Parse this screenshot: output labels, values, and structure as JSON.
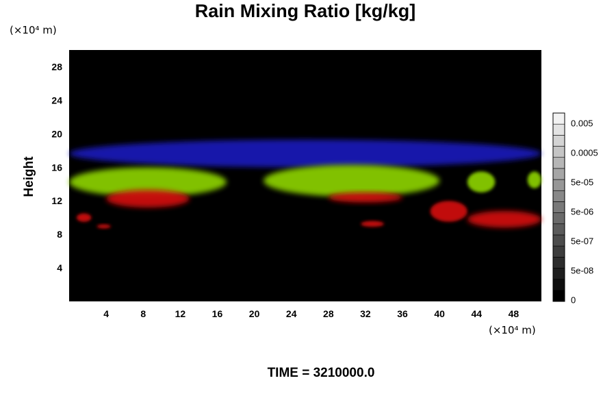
{
  "chart_data": {
    "type": "heatmap",
    "title": "Rain Mixing Ratio [kg/kg]",
    "ylabel": "Height",
    "x_unit": "(×10⁴ m)",
    "y_unit": "(×10⁴ m)",
    "xlim": [
      0,
      51
    ],
    "ylim": [
      0,
      30
    ],
    "x_ticks": [
      4,
      8,
      12,
      16,
      20,
      24,
      28,
      32,
      36,
      40,
      44,
      48
    ],
    "y_ticks": [
      4,
      8,
      12,
      16,
      20,
      24,
      28
    ],
    "grid": false,
    "background_color": "#000000",
    "features": [
      {
        "color": "#1c1cc8",
        "x": [
          0,
          51
        ],
        "y": [
          16,
          19.3
        ]
      },
      {
        "color": "#88cc00",
        "x": [
          0,
          17
        ],
        "y": [
          12.5,
          16
        ]
      },
      {
        "color": "#88cc00",
        "x": [
          21,
          40
        ],
        "y": [
          12.5,
          16.3
        ]
      },
      {
        "color": "#88cc00",
        "x": [
          43,
          46
        ],
        "y": [
          13,
          15.5
        ]
      },
      {
        "color": "#88cc00",
        "x": [
          49.5,
          51
        ],
        "y": [
          13.5,
          15.5
        ]
      },
      {
        "color": "#cc1010",
        "x": [
          4,
          13
        ],
        "y": [
          11.2,
          13.3
        ]
      },
      {
        "color": "#cc1010",
        "x": [
          28,
          36
        ],
        "y": [
          11.8,
          13
        ]
      },
      {
        "color": "#cc1010",
        "x": [
          39,
          43
        ],
        "y": [
          9.5,
          12
        ]
      },
      {
        "color": "#cc1010",
        "x": [
          43,
          51
        ],
        "y": [
          8.8,
          10.8
        ]
      },
      {
        "color": "#cc1010",
        "x": [
          0.8,
          2.4
        ],
        "y": [
          9.5,
          10.5
        ]
      },
      {
        "color": "#cc1010",
        "x": [
          31.5,
          34
        ],
        "y": [
          8.9,
          9.6
        ]
      },
      {
        "color": "#cc1010",
        "x": [
          3,
          4.5
        ],
        "y": [
          8.7,
          9.2
        ]
      }
    ],
    "colorbar": {
      "tick_labels": [
        "0.005",
        "0.0005",
        "5e-05",
        "5e-06",
        "5e-07",
        "5e-08",
        "0"
      ],
      "levels": 17,
      "color_light": "#f2f2f2",
      "color_dark": "#000000"
    }
  },
  "footer": {
    "time_text": "TIME = 3210000.0"
  }
}
